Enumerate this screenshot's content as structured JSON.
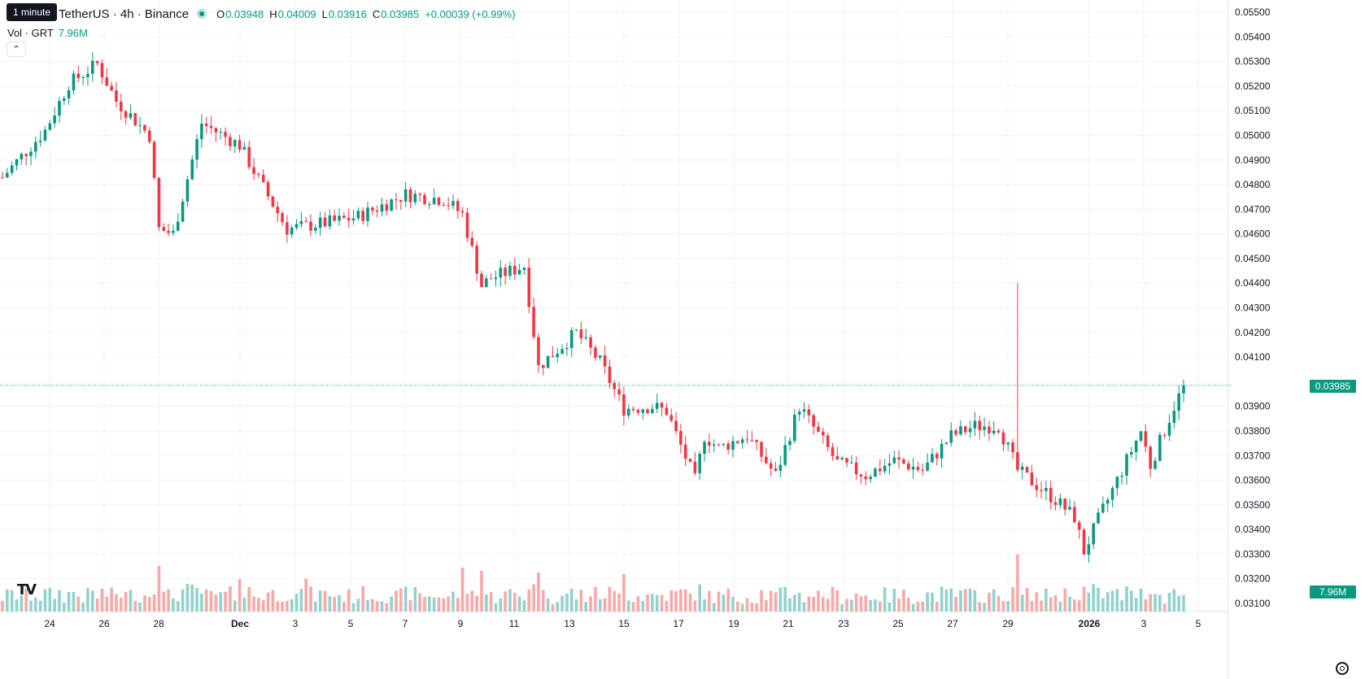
{
  "header": {
    "tooltip": "1 minute",
    "title": "TetherUS · 4h · Binance",
    "ohlc": [
      {
        "label": "O",
        "value": "0.03948"
      },
      {
        "label": "H",
        "value": "0.04009"
      },
      {
        "label": "L",
        "value": "0.03916"
      },
      {
        "label": "C",
        "value": "0.03985"
      }
    ],
    "change": "+0.00039 (+0.99%)",
    "vol_label": "Vol · GRT",
    "vol_value": "7.96M",
    "collapse_icon": "chevron-up-icon"
  },
  "price_tag": "0.03985",
  "volume_tag": "7.96M",
  "colors": {
    "up": "#089981",
    "down": "#f23645",
    "up_vol": "#92d2cc",
    "down_vol": "#f7a9a7",
    "grid": "#f0f3fa",
    "last_price_line": "#089981"
  },
  "chart_data": {
    "type": "candlestick",
    "symbol": "GRT/TetherUS",
    "interval": "4h",
    "exchange": "Binance",
    "x_tick_labels": [
      "24",
      "26",
      "28",
      "Dec",
      "3",
      "5",
      "7",
      "9",
      "11",
      "13",
      "15",
      "17",
      "19",
      "21",
      "23",
      "25",
      "27",
      "29",
      "2026",
      "3",
      "5"
    ],
    "y_ticks": [
      "0.05500",
      "0.05400",
      "0.05300",
      "0.05200",
      "0.05100",
      "0.05000",
      "0.04900",
      "0.04800",
      "0.04700",
      "0.04600",
      "0.04500",
      "0.04400",
      "0.04300",
      "0.04200",
      "0.04100",
      "0.03900",
      "0.03800",
      "0.03700",
      "0.03600",
      "0.03500",
      "0.03400",
      "0.03300",
      "0.03200",
      "0.03100"
    ],
    "ylim": [
      0.0306,
      0.0555
    ],
    "last_price": 0.03985,
    "last_volume": "7.96M",
    "close_path": [
      [
        0,
        0.0483
      ],
      [
        9,
        0.0502
      ],
      [
        14,
        0.0521
      ],
      [
        20,
        0.0529
      ],
      [
        24,
        0.0514
      ],
      [
        31,
        0.05
      ],
      [
        33,
        0.0462
      ],
      [
        36,
        0.046
      ],
      [
        42,
        0.0505
      ],
      [
        50,
        0.0496
      ],
      [
        54,
        0.0482
      ],
      [
        60,
        0.0462
      ],
      [
        70,
        0.0465
      ],
      [
        75,
        0.0467
      ],
      [
        85,
        0.0476
      ],
      [
        93,
        0.0474
      ],
      [
        97,
        0.0468
      ],
      [
        101,
        0.0439
      ],
      [
        103,
        0.0442
      ],
      [
        110,
        0.0447
      ],
      [
        113,
        0.0406
      ],
      [
        121,
        0.042
      ],
      [
        126,
        0.0408
      ],
      [
        131,
        0.0389
      ],
      [
        137,
        0.039
      ],
      [
        140,
        0.0388
      ],
      [
        146,
        0.036
      ],
      [
        148,
        0.0378
      ],
      [
        151,
        0.0373
      ],
      [
        157,
        0.0378
      ],
      [
        163,
        0.0362
      ],
      [
        168,
        0.039
      ],
      [
        176,
        0.0367
      ],
      [
        182,
        0.0362
      ],
      [
        188,
        0.0368
      ],
      [
        194,
        0.0364
      ],
      [
        200,
        0.0378
      ],
      [
        205,
        0.0382
      ],
      [
        210,
        0.0382
      ],
      [
        214,
        0.0364
      ],
      [
        218,
        0.0358
      ],
      [
        222,
        0.0352
      ],
      [
        226,
        0.0345
      ],
      [
        228,
        0.0331
      ],
      [
        231,
        0.0344
      ],
      [
        235,
        0.036
      ],
      [
        240,
        0.038
      ],
      [
        242,
        0.0366
      ],
      [
        247,
        0.039
      ],
      [
        249,
        0.0398
      ]
    ],
    "volume_range": "0 to 7.96M+"
  }
}
